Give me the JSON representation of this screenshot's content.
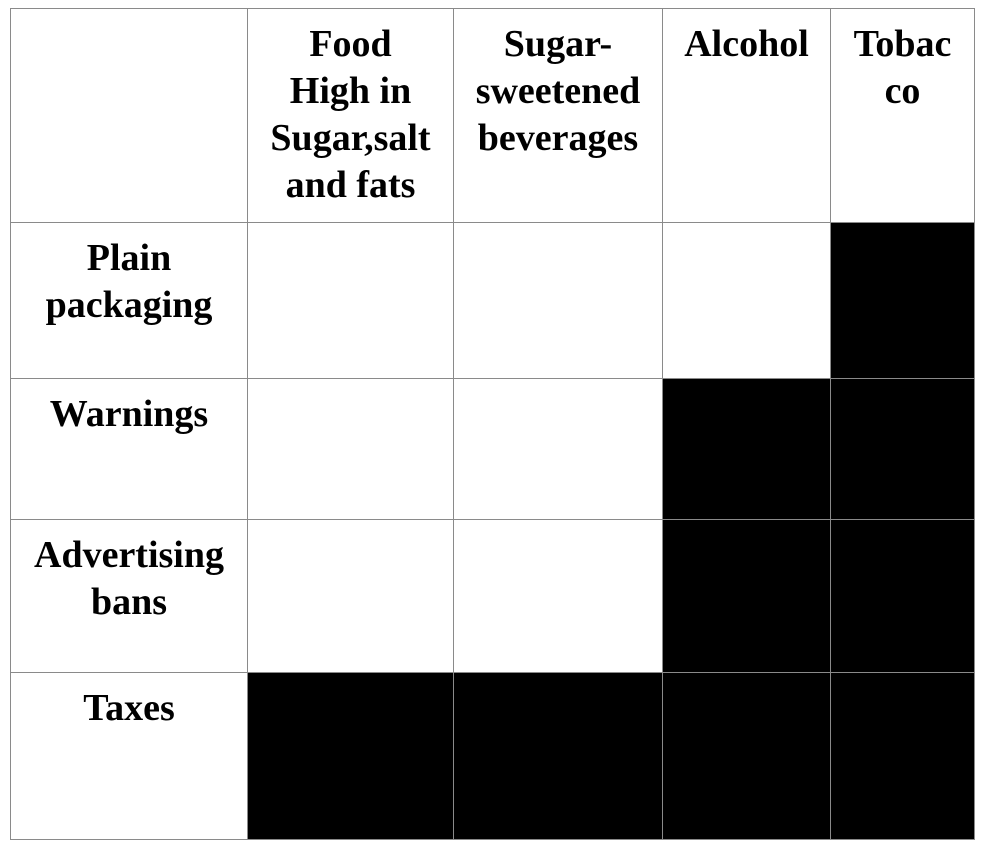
{
  "table": {
    "columns": [
      {
        "key": "food",
        "lines": [
          "Food",
          "High in",
          "Sugar,salt",
          "and fats"
        ]
      },
      {
        "key": "ssb",
        "lines": [
          "Sugar-",
          "sweetened",
          "beverages"
        ]
      },
      {
        "key": "alcohol",
        "lines": [
          "Alcohol"
        ]
      },
      {
        "key": "tobacco",
        "lines": [
          "Tobac",
          "co"
        ]
      }
    ],
    "rows": [
      {
        "key": "plain",
        "lines": [
          "Plain",
          "packaging"
        ],
        "cells": [
          false,
          false,
          false,
          true
        ]
      },
      {
        "key": "warnings",
        "lines": [
          "Warnings"
        ],
        "cells": [
          false,
          false,
          true,
          true
        ]
      },
      {
        "key": "ads",
        "lines": [
          "Advertising",
          "bans"
        ],
        "cells": [
          false,
          false,
          true,
          true
        ]
      },
      {
        "key": "taxes",
        "lines": [
          "Taxes"
        ],
        "cells": [
          true,
          true,
          true,
          true
        ]
      }
    ],
    "filled_color": "#000000",
    "empty_color": "#ffffff"
  }
}
